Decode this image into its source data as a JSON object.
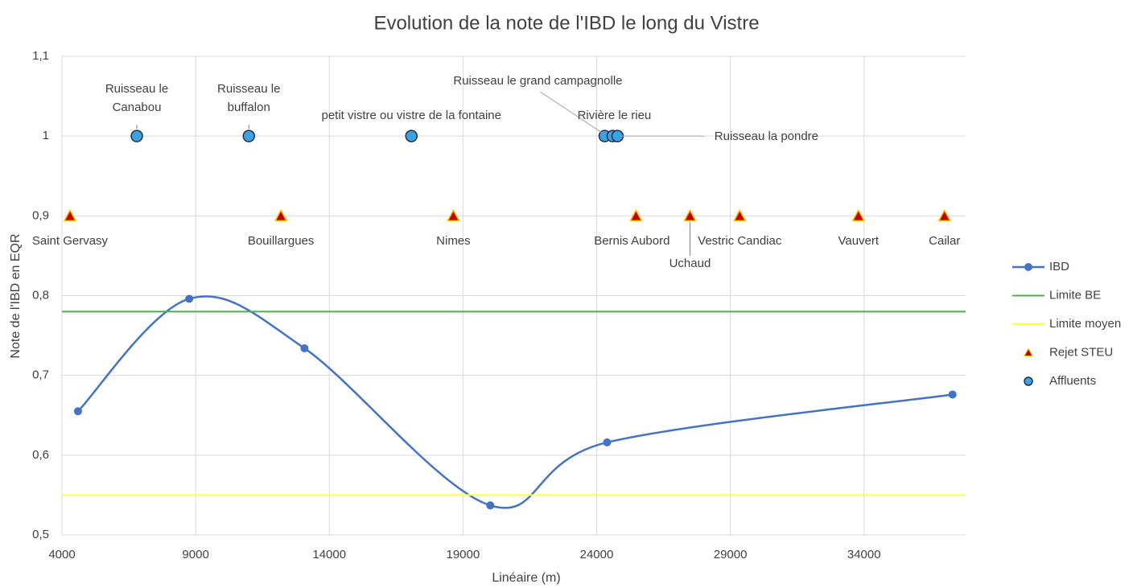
{
  "chart_data": {
    "type": "line",
    "title": "Evolution de la note de l'IBD le long du Vistre",
    "xlabel": "Linéaire (m)",
    "ylabel": "Note de l'IBD en EQR",
    "xlim": [
      4000,
      37800
    ],
    "xticks": [
      4000,
      9000,
      14000,
      19000,
      24000,
      29000,
      34000
    ],
    "ylim": [
      0.5,
      1.1
    ],
    "yticks": [
      {
        "value": 0.5,
        "label": "0,5"
      },
      {
        "value": 0.6,
        "label": "0,6"
      },
      {
        "value": 0.7,
        "label": "0,7"
      },
      {
        "value": 0.8,
        "label": "0,8"
      },
      {
        "value": 0.9,
        "label": "0,9"
      },
      1,
      {
        "value": 1.1,
        "label": "1,1"
      }
    ],
    "grid": true,
    "legend": "right",
    "series": [
      {
        "name": "IBD",
        "type": "line",
        "smooth": true,
        "color": "#4472c4",
        "x": [
          4600,
          8760,
          13070,
          20020,
          24390,
          37310
        ],
        "values": [
          0.655,
          0.796,
          0.734,
          0.537,
          0.616,
          0.676
        ]
      },
      {
        "name": "Limite BE",
        "type": "hline",
        "color": "#4caf50",
        "value": 0.78
      },
      {
        "name": "Limite moyen",
        "type": "hline",
        "color": "#ffff40",
        "value": 0.55
      },
      {
        "name": "Rejet STEU",
        "type": "scatter",
        "marker": "triangle",
        "color": "#c00000",
        "edge": "#ffc000",
        "x": [
          4300,
          12190,
          18640,
          25470,
          27490,
          29350,
          33790,
          37010
        ],
        "values": [
          0.9,
          0.9,
          0.9,
          0.9,
          0.9,
          0.9,
          0.9,
          0.9
        ],
        "labels": [
          "Saint Gervasy",
          "Bouillargues",
          "Nimes",
          "Bernis Aubord",
          "Uchaud",
          "Vestric Candiac",
          "Vauvert",
          "Cailar"
        ]
      },
      {
        "name": "Affluents",
        "type": "scatter",
        "marker": "circle",
        "color": "#3ba3e0",
        "edge": "#1f2f4f",
        "x": [
          6800,
          10990,
          17070,
          24300,
          24600,
          24780
        ],
        "values": [
          1,
          1,
          1,
          1,
          1,
          1
        ],
        "labels": [
          "Ruisseau le Canabou",
          "Ruisseau le buffalon",
          "petit vistre ou vistre de la fontaine",
          "Ruisseau le grand campagnolle",
          "Rivière le rieu",
          "Ruisseau la pondre"
        ]
      }
    ]
  }
}
